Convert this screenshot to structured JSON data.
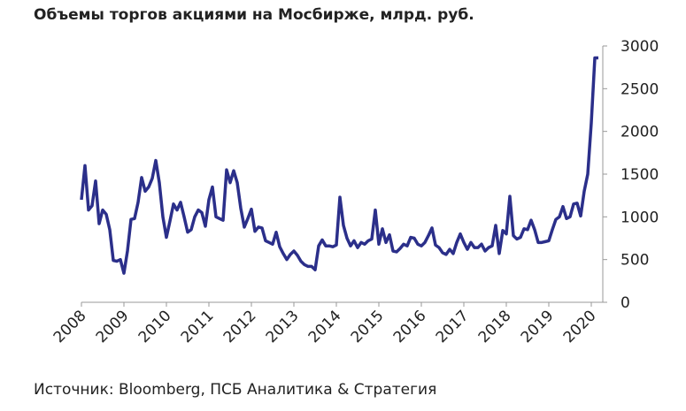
{
  "chart_data": {
    "type": "line",
    "title": "Объемы торгов акциями на Мосбирже, млрд. руб.",
    "source": "Источник: Bloomberg, ПСБ Аналитика & Стратегия",
    "categories": [
      "2008",
      null,
      null,
      null,
      null,
      null,
      null,
      null,
      null,
      null,
      null,
      null,
      "2009",
      null,
      null,
      null,
      null,
      null,
      null,
      null,
      null,
      null,
      null,
      null,
      "2010",
      null,
      null,
      null,
      null,
      null,
      null,
      null,
      null,
      null,
      null,
      null,
      "2011",
      null,
      null,
      null,
      null,
      null,
      null,
      null,
      null,
      null,
      null,
      null,
      "2012",
      null,
      null,
      null,
      null,
      null,
      null,
      null,
      null,
      null,
      null,
      null,
      "2013",
      null,
      null,
      null,
      null,
      null,
      null,
      null,
      null,
      null,
      null,
      null,
      "2014",
      null,
      null,
      null,
      null,
      null,
      null,
      null,
      null,
      null,
      null,
      null,
      "2015",
      null,
      null,
      null,
      null,
      null,
      null,
      null,
      null,
      null,
      null,
      null,
      "2016",
      null,
      null,
      null,
      null,
      null,
      null,
      null,
      null,
      null,
      null,
      null,
      "2017",
      null,
      null,
      null,
      null,
      null,
      null,
      null,
      null,
      null,
      null,
      null,
      "2018",
      null,
      null,
      null,
      null,
      null,
      null,
      null,
      null,
      null,
      null,
      null,
      "2019",
      null,
      null,
      null,
      null,
      null,
      null,
      null,
      null,
      null,
      null,
      null,
      "2020",
      null,
      null
    ],
    "values": [
      1200,
      1600,
      1080,
      1130,
      1420,
      920,
      1080,
      1030,
      850,
      490,
      480,
      500,
      340,
      600,
      970,
      980,
      1170,
      1460,
      1300,
      1350,
      1450,
      1660,
      1400,
      1000,
      760,
      950,
      1150,
      1080,
      1170,
      1000,
      820,
      850,
      1000,
      1080,
      1050,
      890,
      1200,
      1350,
      1000,
      980,
      960,
      1550,
      1400,
      1540,
      1400,
      1100,
      880,
      980,
      1090,
      830,
      880,
      870,
      720,
      700,
      680,
      820,
      650,
      570,
      500,
      560,
      600,
      550,
      480,
      440,
      420,
      420,
      380,
      660,
      730,
      660,
      660,
      650,
      670,
      1230,
      900,
      750,
      660,
      720,
      640,
      700,
      680,
      720,
      740,
      1080,
      680,
      860,
      700,
      790,
      600,
      590,
      630,
      680,
      660,
      760,
      750,
      680,
      660,
      700,
      780,
      870,
      670,
      640,
      580,
      560,
      620,
      570,
      700,
      800,
      700,
      620,
      700,
      640,
      640,
      680,
      600,
      640,
      660,
      900,
      570,
      840,
      800,
      1240,
      780,
      740,
      760,
      860,
      850,
      960,
      850,
      700,
      700,
      710,
      720,
      850,
      970,
      1000,
      1120,
      980,
      1000,
      1150,
      1160,
      1010,
      1300,
      1500,
      2100,
      2860,
      2860
    ],
    "color": "#2b2f8a",
    "ylim": [
      0,
      3000
    ],
    "yticks": [
      0,
      500,
      1000,
      1500,
      2000,
      2500,
      3000
    ]
  }
}
